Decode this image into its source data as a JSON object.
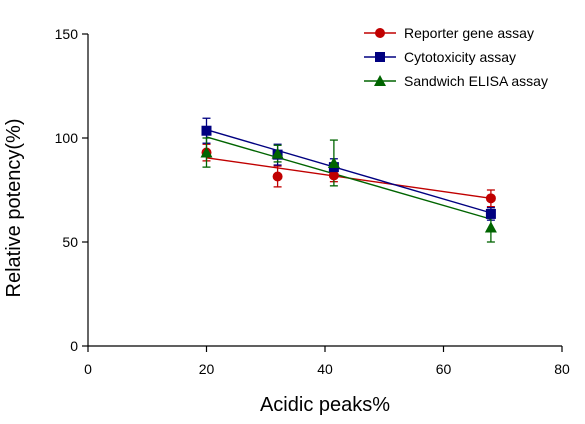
{
  "chart_data": {
    "type": "scatter",
    "title": "",
    "xlabel": "Acidic peaks%",
    "ylabel": "Relative potency(%)",
    "xlim": [
      0,
      80
    ],
    "ylim": [
      0,
      150
    ],
    "xticks": [
      0,
      20,
      40,
      60,
      80
    ],
    "yticks": [
      0,
      50,
      100,
      150
    ],
    "grid": false,
    "legend_position": "top-right",
    "series": [
      {
        "name": "Reporter gene assay",
        "color": "#C00000",
        "marker": "circle",
        "x": [
          20,
          32,
          41.5,
          68
        ],
        "y": [
          93,
          81.5,
          82,
          71
        ],
        "err": [
          4,
          5,
          3,
          4
        ],
        "fit": {
          "x": [
            20,
            68
          ],
          "y": [
            90.5,
            71
          ]
        }
      },
      {
        "name": "Cytotoxicity assay",
        "color": "#000080",
        "marker": "square",
        "x": [
          20,
          32,
          41.5,
          68
        ],
        "y": [
          103.5,
          92,
          86,
          63.5
        ],
        "err": [
          6,
          5,
          4,
          3
        ],
        "fit": {
          "x": [
            20,
            68
          ],
          "y": [
            104,
            64
          ]
        }
      },
      {
        "name": "Sandwich ELISA assay",
        "color": "#006400",
        "marker": "triangle",
        "x": [
          20,
          32,
          41.5,
          68
        ],
        "y": [
          93,
          92.5,
          88,
          57
        ],
        "err": [
          7,
          4,
          11,
          7
        ],
        "fit": {
          "x": [
            20,
            68
          ],
          "y": [
            100.5,
            61
          ]
        }
      }
    ]
  }
}
